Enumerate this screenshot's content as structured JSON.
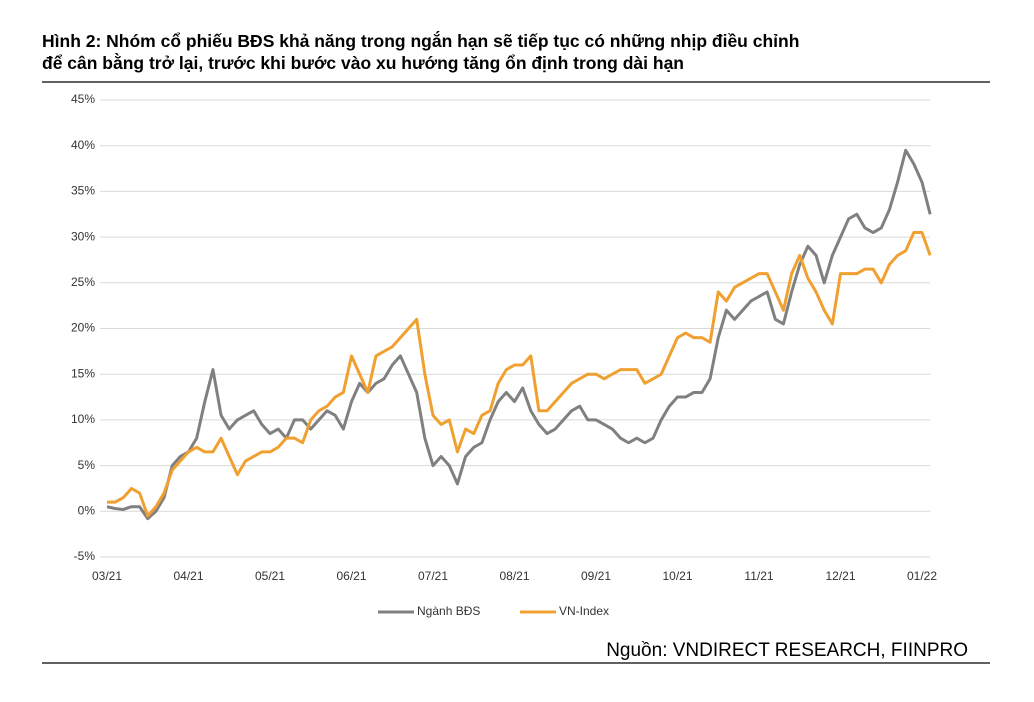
{
  "chart_data": {
    "type": "line",
    "title": [
      "Hình 2: Nhóm cổ phiếu BĐS khả năng trong ngắn hạn sẽ tiếp tục có những nhịp điều chỉnh",
      "để cân bằng trở lại, trước khi bước vào xu hướng tăng ổn định trong dài hạn"
    ],
    "source": "Nguồn: VNDIRECT RESEARCH, FIINPRO",
    "categories": [
      "03/21",
      null,
      null,
      null,
      null,
      null,
      null,
      null,
      null,
      null,
      "04/21",
      null,
      null,
      null,
      null,
      null,
      null,
      null,
      null,
      null,
      "05/21",
      null,
      null,
      null,
      null,
      null,
      null,
      null,
      null,
      null,
      "06/21",
      null,
      null,
      null,
      null,
      null,
      null,
      null,
      null,
      null,
      "07/21",
      null,
      null,
      null,
      null,
      null,
      null,
      null,
      null,
      null,
      "08/21",
      null,
      null,
      null,
      null,
      null,
      null,
      null,
      null,
      null,
      "09/21",
      null,
      null,
      null,
      null,
      null,
      null,
      null,
      null,
      null,
      "10/21",
      null,
      null,
      null,
      null,
      null,
      null,
      null,
      null,
      null,
      "11/21",
      null,
      null,
      null,
      null,
      null,
      null,
      null,
      null,
      null,
      "12/21",
      null,
      null,
      null,
      null,
      null,
      null,
      null,
      null,
      null,
      "01/22",
      null
    ],
    "series": [
      {
        "name": "Ngành BĐS",
        "color": "#808080",
        "values": [
          0.5,
          0.3,
          0.2,
          0.5,
          0.5,
          -0.8,
          0,
          1.5,
          5,
          6,
          6.5,
          8,
          12,
          15.5,
          10.5,
          9,
          10,
          10.5,
          11,
          9.5,
          8.5,
          9,
          8,
          10,
          10,
          9,
          10,
          11,
          10.5,
          9,
          12,
          14,
          13,
          14,
          14.5,
          16,
          17,
          15,
          13,
          8,
          5,
          6,
          5,
          3,
          6,
          7,
          7.5,
          10,
          12,
          13,
          12,
          13.5,
          11,
          9.5,
          8.5,
          9,
          10,
          11,
          11.5,
          10,
          10,
          9.5,
          9,
          8,
          7.5,
          8,
          7.5,
          8,
          10,
          11.5,
          12.5,
          12.5,
          13,
          13,
          14.5,
          19,
          22,
          21,
          22,
          23,
          23.5,
          24,
          21,
          20.5,
          24,
          27,
          29,
          28,
          25,
          28,
          30,
          32,
          32.5,
          31,
          30.5,
          31,
          33,
          36,
          39.5,
          38,
          36,
          32.5
        ]
      },
      {
        "name": "VN-Index",
        "color": "#f0a030",
        "values": [
          1,
          1,
          1.5,
          2.5,
          2,
          -0.5,
          0.5,
          2,
          4.5,
          5.5,
          6.5,
          7,
          6.5,
          6.5,
          8,
          6,
          4,
          5.5,
          6,
          6.5,
          6.5,
          7,
          8,
          8,
          7.5,
          10,
          11,
          11.5,
          12.5,
          13,
          17,
          15,
          13,
          17,
          17.5,
          18,
          19,
          20,
          21,
          15,
          10.5,
          9.5,
          10,
          6.5,
          9,
          8.5,
          10.5,
          11,
          14,
          15.5,
          16,
          16,
          17,
          11,
          11,
          12,
          13,
          14,
          14.5,
          15,
          15,
          14.5,
          15,
          15.5,
          15.5,
          15.5,
          14,
          14.5,
          15,
          17,
          19,
          19.5,
          19,
          19,
          18.5,
          24,
          23,
          24.5,
          25,
          25.5,
          26,
          26,
          24,
          22,
          26,
          28,
          25.5,
          24,
          22,
          20.5,
          26,
          26,
          26,
          26.5,
          26.5,
          25,
          27,
          28,
          28.5,
          30.5,
          30.5,
          28
        ]
      }
    ],
    "ylim": [
      -5,
      45
    ],
    "yticks": [
      {
        "value": -5,
        "label": "-5%"
      },
      {
        "value": 0,
        "label": "0%"
      },
      {
        "value": 5,
        "label": "5%"
      },
      {
        "value": 10,
        "label": "10%"
      },
      {
        "value": 15,
        "label": "15%"
      },
      {
        "value": 20,
        "label": "20%"
      },
      {
        "value": 25,
        "label": "25%"
      },
      {
        "value": 30,
        "label": "30%"
      },
      {
        "value": 35,
        "label": "35%"
      },
      {
        "value": 40,
        "label": "40%"
      },
      {
        "value": 45,
        "label": "45%"
      }
    ],
    "grid": true,
    "legend": "bottom"
  }
}
